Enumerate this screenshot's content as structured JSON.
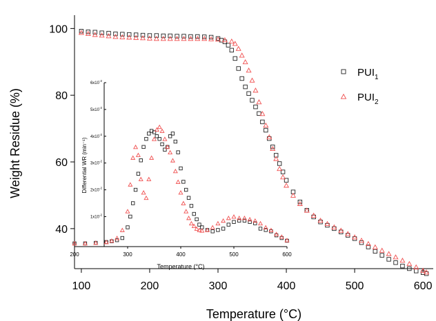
{
  "chart_data": [
    {
      "type": "scatter",
      "title": "",
      "xlabel": "Temperature (°C)",
      "ylabel": "Weight Residue (%)",
      "xlim": [
        90,
        615
      ],
      "ylim": [
        28,
        104
      ],
      "xticks": [
        100,
        200,
        300,
        400,
        500,
        600
      ],
      "yticks": [
        40,
        60,
        80,
        100
      ],
      "legend": {
        "position": "top-right"
      },
      "series": [
        {
          "name": "PUI1",
          "label_main": "PUI",
          "label_sub": "1",
          "color": "#222222",
          "marker": "square",
          "x": [
            100,
            110,
            120,
            130,
            140,
            150,
            160,
            170,
            180,
            190,
            200,
            210,
            220,
            230,
            240,
            250,
            260,
            270,
            280,
            290,
            300,
            305,
            310,
            315,
            320,
            325,
            330,
            335,
            340,
            345,
            350,
            355,
            360,
            365,
            370,
            375,
            380,
            385,
            390,
            395,
            400,
            410,
            420,
            430,
            440,
            450,
            460,
            470,
            480,
            490,
            500,
            510,
            520,
            530,
            540,
            550,
            560,
            570,
            580,
            590,
            600,
            605
          ],
          "y": [
            99.2,
            99.0,
            98.9,
            98.7,
            98.6,
            98.4,
            98.3,
            98.2,
            98.1,
            98.0,
            97.9,
            97.9,
            97.8,
            97.8,
            97.7,
            97.7,
            97.6,
            97.6,
            97.5,
            97.4,
            97.0,
            96.5,
            96.0,
            95.0,
            93.5,
            91.0,
            88.0,
            85.0,
            82.5,
            80.5,
            78.5,
            76.5,
            74.5,
            72.0,
            69.5,
            67.0,
            64.5,
            62.0,
            59.5,
            57.0,
            54.5,
            51.0,
            48.0,
            45.5,
            43.5,
            42.0,
            41.0,
            40.0,
            39.0,
            38.0,
            37.0,
            35.8,
            34.5,
            33.2,
            32.0,
            30.8,
            29.8,
            28.8,
            28.0,
            27.3,
            26.8,
            26.5
          ]
        },
        {
          "name": "PUI2",
          "label_main": "PUI",
          "label_sub": "2",
          "color": "#f05050",
          "marker": "triangle",
          "x": [
            100,
            110,
            120,
            130,
            140,
            150,
            160,
            170,
            180,
            190,
            200,
            210,
            220,
            230,
            240,
            250,
            260,
            270,
            280,
            290,
            300,
            310,
            320,
            325,
            330,
            335,
            340,
            345,
            350,
            355,
            360,
            365,
            370,
            375,
            380,
            385,
            390,
            395,
            400,
            410,
            420,
            430,
            440,
            450,
            460,
            470,
            480,
            490,
            500,
            510,
            520,
            530,
            540,
            550,
            560,
            570,
            580,
            590,
            600,
            605
          ],
          "y": [
            98.8,
            98.5,
            98.2,
            98.0,
            97.8,
            97.6,
            97.5,
            97.4,
            97.3,
            97.2,
            97.1,
            97.0,
            97.0,
            97.0,
            97.0,
            97.0,
            97.0,
            97.0,
            97.0,
            96.9,
            96.8,
            96.6,
            96.2,
            95.5,
            94.0,
            92.0,
            90.0,
            87.5,
            84.5,
            81.5,
            78.0,
            74.5,
            71.0,
            67.5,
            64.0,
            61.0,
            58.0,
            55.5,
            53.0,
            50.0,
            47.5,
            45.5,
            44.0,
            42.5,
            41.5,
            40.5,
            39.5,
            38.5,
            37.5,
            36.5,
            35.5,
            34.5,
            33.5,
            32.5,
            31.5,
            30.5,
            29.5,
            28.5,
            27.5,
            27.0
          ]
        }
      ]
    },
    {
      "type": "scatter",
      "title": "",
      "xlabel": "Temperature (°C)",
      "ylabel": "Differential WR (min⁻¹)",
      "xlim": [
        200,
        600
      ],
      "ylim": [
        -0.12,
        6
      ],
      "xticks": [
        200,
        300,
        400,
        500,
        600
      ],
      "yticks": [
        1,
        2,
        3,
        4,
        5,
        6
      ],
      "ytick_labels": [
        {
          "m": "1x10",
          "e": "-2"
        },
        {
          "m": "2x10",
          "e": "-2"
        },
        {
          "m": "3x10",
          "e": "-2"
        },
        {
          "m": "4x10",
          "e": "-2"
        },
        {
          "m": "5x10",
          "e": "-2"
        },
        {
          "m": "6x10",
          "e": "-2"
        }
      ],
      "series": [
        {
          "name": "PUI1",
          "color": "#222222",
          "marker": "square",
          "x": [
            200,
            220,
            240,
            260,
            270,
            280,
            290,
            300,
            305,
            310,
            315,
            320,
            325,
            330,
            335,
            340,
            345,
            350,
            355,
            360,
            365,
            370,
            375,
            380,
            385,
            390,
            395,
            400,
            405,
            410,
            415,
            420,
            425,
            430,
            435,
            440,
            450,
            460,
            470,
            480,
            490,
            500,
            510,
            520,
            530,
            540,
            550,
            560,
            570,
            580,
            590,
            600
          ],
          "y": [
            0.0,
            0.0,
            0.02,
            0.05,
            0.08,
            0.12,
            0.2,
            0.6,
            1.0,
            1.5,
            2.0,
            2.6,
            3.1,
            3.6,
            3.9,
            4.1,
            4.2,
            4.15,
            4.0,
            3.9,
            3.7,
            3.5,
            3.6,
            4.0,
            4.1,
            3.8,
            3.4,
            2.8,
            2.3,
            2.0,
            1.7,
            1.4,
            1.1,
            0.9,
            0.7,
            0.6,
            0.5,
            0.45,
            0.5,
            0.55,
            0.7,
            0.8,
            0.85,
            0.85,
            0.8,
            0.75,
            0.55,
            0.5,
            0.45,
            0.3,
            0.2,
            0.1
          ]
        },
        {
          "name": "PUI2",
          "color": "#f05050",
          "marker": "triangle",
          "x": [
            200,
            220,
            240,
            260,
            270,
            280,
            290,
            300,
            305,
            310,
            315,
            320,
            325,
            330,
            335,
            340,
            345,
            350,
            355,
            360,
            365,
            370,
            375,
            380,
            385,
            390,
            395,
            400,
            405,
            410,
            415,
            420,
            425,
            430,
            435,
            440,
            450,
            460,
            470,
            480,
            490,
            500,
            510,
            520,
            530,
            540,
            550,
            560,
            570,
            580,
            590,
            600
          ],
          "y": [
            0.0,
            0.0,
            0.02,
            0.05,
            0.1,
            0.2,
            0.5,
            1.2,
            2.2,
            3.2,
            3.6,
            3.3,
            2.4,
            1.9,
            1.7,
            2.4,
            3.2,
            3.9,
            4.25,
            4.35,
            4.2,
            3.9,
            3.6,
            3.4,
            3.1,
            2.7,
            2.3,
            1.9,
            1.5,
            1.2,
            0.95,
            0.75,
            0.65,
            0.55,
            0.5,
            0.48,
            0.5,
            0.6,
            0.75,
            0.85,
            0.95,
            1.0,
            0.95,
            0.95,
            0.9,
            0.85,
            0.75,
            0.6,
            0.5,
            0.35,
            0.25,
            0.12
          ]
        }
      ]
    }
  ]
}
